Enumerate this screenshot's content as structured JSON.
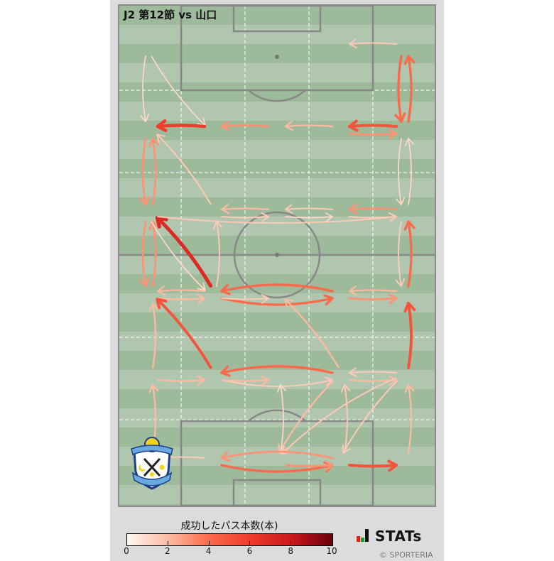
{
  "title": "J2 第12節 vs 山口",
  "legend": {
    "title": "成功したパス本数(本)",
    "ticks": [
      "0",
      "2",
      "4",
      "6",
      "8",
      "10"
    ],
    "range": [
      0,
      10
    ],
    "colormap": [
      "#fff5f0",
      "#fcbba1",
      "#fb6a4a",
      "#ef3b2c",
      "#cb181d",
      "#67000d"
    ]
  },
  "branding": {
    "logo_text": "STATs",
    "copyright": "© SPORTERIA"
  },
  "team_logo": {
    "text_top": "JUBILO IWATA",
    "text_bottom": "SINCE 1992"
  },
  "chart_data": {
    "type": "pass-map",
    "grid": {
      "columns": 5,
      "rows": 6
    },
    "value_label": "成功したパス本数(本)",
    "passes": [
      {
        "from": [
          4,
          0
        ],
        "to": [
          3,
          0
        ],
        "value": 1.5
      },
      {
        "from": [
          4,
          0
        ],
        "to": [
          4,
          1
        ],
        "value": 4
      },
      {
        "from": [
          4,
          1
        ],
        "to": [
          4,
          0
        ],
        "value": 4
      },
      {
        "from": [
          0,
          0
        ],
        "to": [
          0,
          1
        ],
        "value": 1
      },
      {
        "from": [
          0,
          0
        ],
        "to": [
          1,
          1
        ],
        "value": 1
      },
      {
        "from": [
          1,
          1
        ],
        "to": [
          0,
          1
        ],
        "value": 6
      },
      {
        "from": [
          2,
          1
        ],
        "to": [
          1,
          1
        ],
        "value": 3
      },
      {
        "from": [
          3,
          1
        ],
        "to": [
          2,
          1
        ],
        "value": 2
      },
      {
        "from": [
          4,
          1
        ],
        "to": [
          3,
          1
        ],
        "value": 5
      },
      {
        "from": [
          3,
          1
        ],
        "to": [
          4,
          1
        ],
        "value": 3
      },
      {
        "from": [
          0,
          1
        ],
        "to": [
          0,
          2
        ],
        "value": 3
      },
      {
        "from": [
          0,
          2
        ],
        "to": [
          0,
          1
        ],
        "value": 3
      },
      {
        "from": [
          1,
          2
        ],
        "to": [
          0,
          1
        ],
        "value": 1.5
      },
      {
        "from": [
          4,
          1
        ],
        "to": [
          4,
          2
        ],
        "value": 1
      },
      {
        "from": [
          4,
          2
        ],
        "to": [
          4,
          1
        ],
        "value": 1
      },
      {
        "from": [
          2,
          2
        ],
        "to": [
          1,
          2
        ],
        "value": 2
      },
      {
        "from": [
          1,
          2
        ],
        "to": [
          2,
          2
        ],
        "value": 1.5
      },
      {
        "from": [
          3,
          2
        ],
        "to": [
          2,
          2
        ],
        "value": 1.5
      },
      {
        "from": [
          2,
          2
        ],
        "to": [
          3,
          2
        ],
        "value": 1
      },
      {
        "from": [
          4,
          2
        ],
        "to": [
          3,
          2
        ],
        "value": 3
      },
      {
        "from": [
          3,
          2
        ],
        "to": [
          4,
          2
        ],
        "value": 1.5
      },
      {
        "from": [
          0,
          2
        ],
        "to": [
          0,
          3
        ],
        "value": 3
      },
      {
        "from": [
          0,
          3
        ],
        "to": [
          0,
          2
        ],
        "value": 3
      },
      {
        "from": [
          1,
          3
        ],
        "to": [
          0,
          2
        ],
        "value": 7
      },
      {
        "from": [
          4,
          3
        ],
        "to": [
          4,
          2
        ],
        "value": 4
      },
      {
        "from": [
          4,
          2
        ],
        "to": [
          4,
          3
        ],
        "value": 1.5
      },
      {
        "from": [
          0,
          2
        ],
        "to": [
          4,
          2
        ],
        "value": 1.5
      },
      {
        "from": [
          1,
          3
        ],
        "to": [
          1,
          2
        ],
        "value": 1.5
      },
      {
        "from": [
          0,
          2
        ],
        "to": [
          1,
          3
        ],
        "value": 1
      },
      {
        "from": [
          0,
          3
        ],
        "to": [
          1,
          3
        ],
        "value": 2
      },
      {
        "from": [
          1,
          3
        ],
        "to": [
          0,
          3
        ],
        "value": 2
      },
      {
        "from": [
          3,
          3
        ],
        "to": [
          1,
          3
        ],
        "value": 4
      },
      {
        "from": [
          1,
          3
        ],
        "to": [
          3,
          3
        ],
        "value": 4
      },
      {
        "from": [
          3,
          3
        ],
        "to": [
          4,
          3
        ],
        "value": 3
      },
      {
        "from": [
          4,
          3
        ],
        "to": [
          3,
          3
        ],
        "value": 2
      },
      {
        "from": [
          1,
          3
        ],
        "to": [
          2,
          3
        ],
        "value": 1.5
      },
      {
        "from": [
          4,
          4
        ],
        "to": [
          4,
          3
        ],
        "value": 5
      },
      {
        "from": [
          0,
          4
        ],
        "to": [
          0,
          3
        ],
        "value": 2
      },
      {
        "from": [
          1,
          4
        ],
        "to": [
          0,
          3
        ],
        "value": 5
      },
      {
        "from": [
          3,
          4
        ],
        "to": [
          2,
          3
        ],
        "value": 2
      },
      {
        "from": [
          0,
          4
        ],
        "to": [
          1,
          4
        ],
        "value": 2
      },
      {
        "from": [
          3,
          4
        ],
        "to": [
          1,
          4
        ],
        "value": 4
      },
      {
        "from": [
          1,
          4
        ],
        "to": [
          3,
          4
        ],
        "value": 1.5
      },
      {
        "from": [
          1,
          4
        ],
        "to": [
          2,
          4
        ],
        "value": 2
      },
      {
        "from": [
          3,
          4
        ],
        "to": [
          4,
          4
        ],
        "value": 2
      },
      {
        "from": [
          4,
          4
        ],
        "to": [
          3,
          4
        ],
        "value": 1.5
      },
      {
        "from": [
          0,
          5
        ],
        "to": [
          0,
          4
        ],
        "value": 2
      },
      {
        "from": [
          4,
          5
        ],
        "to": [
          4,
          4
        ],
        "value": 2
      },
      {
        "from": [
          3,
          4
        ],
        "to": [
          2,
          5
        ],
        "value": 2
      },
      {
        "from": [
          4,
          4
        ],
        "to": [
          2,
          5
        ],
        "value": 1.5
      },
      {
        "from": [
          4,
          4
        ],
        "to": [
          3,
          5
        ],
        "value": 1.5
      },
      {
        "from": [
          3,
          5
        ],
        "to": [
          3,
          4
        ],
        "value": 1.5
      },
      {
        "from": [
          2,
          5
        ],
        "to": [
          2,
          4
        ],
        "value": 1
      },
      {
        "from": [
          1,
          5
        ],
        "to": [
          3,
          5
        ],
        "value": 4
      },
      {
        "from": [
          3,
          5
        ],
        "to": [
          1,
          5
        ],
        "value": 3
      },
      {
        "from": [
          2,
          5
        ],
        "to": [
          3,
          5
        ],
        "value": 3
      },
      {
        "from": [
          3,
          5
        ],
        "to": [
          4,
          5
        ],
        "value": 5
      },
      {
        "from": [
          1,
          5
        ],
        "to": [
          0,
          5
        ],
        "value": 1.5
      }
    ]
  }
}
